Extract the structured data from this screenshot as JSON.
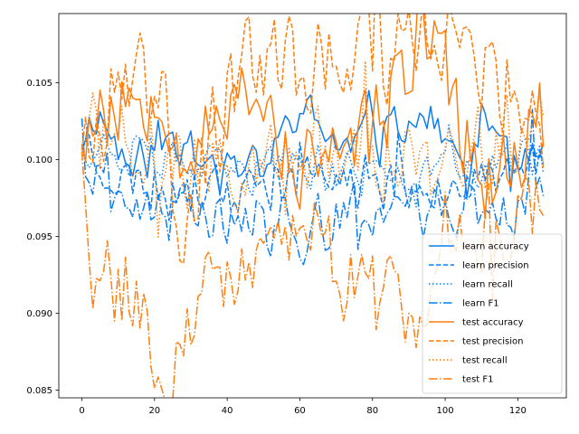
{
  "chart_data": {
    "type": "line",
    "title": "",
    "xlabel": "",
    "ylabel": "",
    "xlim": [
      -6.35,
      133.35
    ],
    "ylim": [
      0.0845,
      0.1095
    ],
    "x_ticks": [
      0,
      20,
      40,
      60,
      80,
      100,
      120
    ],
    "y_ticks": [
      0.085,
      0.09,
      0.095,
      0.1,
      0.105
    ],
    "y_tick_labels": [
      "0.085",
      "0.090",
      "0.095",
      "0.100",
      "0.105"
    ],
    "legend_position": "lower-right",
    "grid": false,
    "colors": {
      "learn": "#0a7ef2",
      "test": "#ff7f0e"
    },
    "series": [
      {
        "name": "learn accuracy",
        "color": "#0a7ef2",
        "dash": "solid",
        "amplitude": 0.0019,
        "seed": 11,
        "anchors": [
          [
            0,
            0.1015
          ],
          [
            4,
            0.1032
          ],
          [
            14,
            0.0992
          ],
          [
            24,
            0.1018
          ],
          [
            32,
            0.1
          ],
          [
            52,
            0.0998
          ],
          [
            59,
            0.1035
          ],
          [
            73,
            0.1005
          ],
          [
            77,
            0.1018
          ],
          [
            91,
            0.103
          ],
          [
            99,
            0.102
          ],
          [
            105,
            0.099
          ],
          [
            113,
            0.1025
          ],
          [
            120,
            0.1
          ],
          [
            127,
            0.1
          ]
        ]
      },
      {
        "name": "learn precision",
        "color": "#0a7ef2",
        "dash": "dashed",
        "amplitude": 0.0021,
        "seed": 23,
        "anchors": [
          [
            0,
            0.1015
          ],
          [
            10,
            0.0985
          ],
          [
            20,
            0.099
          ],
          [
            40,
            0.0975
          ],
          [
            60,
            0.099
          ],
          [
            80,
            0.0985
          ],
          [
            100,
            0.0985
          ],
          [
            120,
            0.099
          ],
          [
            127,
            0.1005
          ]
        ]
      },
      {
        "name": "learn recall",
        "color": "#0a7ef2",
        "dash": "dotted",
        "amplitude": 0.0019,
        "seed": 37,
        "anchors": [
          [
            0,
            0.1012
          ],
          [
            20,
            0.1
          ],
          [
            40,
            0.099
          ],
          [
            60,
            0.0995
          ],
          [
            80,
            0.099
          ],
          [
            100,
            0.0995
          ],
          [
            127,
            0.1
          ]
        ]
      },
      {
        "name": "learn F1",
        "color": "#0a7ef2",
        "dash": "dashdot",
        "amplitude": 0.0025,
        "seed": 41,
        "anchors": [
          [
            0,
            0.101
          ],
          [
            8,
            0.096
          ],
          [
            20,
            0.0965
          ],
          [
            40,
            0.096
          ],
          [
            60,
            0.0955
          ],
          [
            80,
            0.0965
          ],
          [
            100,
            0.097
          ],
          [
            120,
            0.0965
          ],
          [
            127,
            0.099
          ]
        ]
      },
      {
        "name": "test accuracy",
        "color": "#ff7f0e",
        "dash": "solid",
        "amplitude": 0.0035,
        "seed": 53,
        "anchors": [
          [
            0,
            0.1022
          ],
          [
            13,
            0.104
          ],
          [
            22,
            0.105
          ],
          [
            28,
            0.1
          ],
          [
            45,
            0.1055
          ],
          [
            60,
            0.099
          ],
          [
            80,
            0.102
          ],
          [
            92,
            0.1075
          ],
          [
            96,
            0.108
          ],
          [
            110,
            0.098
          ],
          [
            127,
            0.103
          ]
        ]
      },
      {
        "name": "test precision",
        "color": "#ff7f0e",
        "dash": "dashed",
        "amplitude": 0.0042,
        "seed": 67,
        "anchors": [
          [
            0,
            0.102
          ],
          [
            22,
            0.1065
          ],
          [
            27,
            0.096
          ],
          [
            45,
            0.106
          ],
          [
            79,
            0.106
          ],
          [
            91,
            0.108
          ],
          [
            96,
            0.1085
          ],
          [
            127,
            0.1025
          ]
        ]
      },
      {
        "name": "test recall",
        "color": "#ff7f0e",
        "dash": "dotted",
        "amplitude": 0.0035,
        "seed": 71,
        "anchors": [
          [
            0,
            0.102
          ],
          [
            20,
            0.1
          ],
          [
            40,
            0.099
          ],
          [
            60,
            0.1
          ],
          [
            80,
            0.1005
          ],
          [
            100,
            0.0995
          ],
          [
            127,
            0.102
          ]
        ]
      },
      {
        "name": "test F1",
        "color": "#ff7f0e",
        "dash": "dashdot",
        "amplitude": 0.004,
        "seed": 83,
        "anchors": [
          [
            0,
            0.1018
          ],
          [
            2,
            0.092
          ],
          [
            10,
            0.0915
          ],
          [
            27,
            0.087
          ],
          [
            35,
            0.093
          ],
          [
            45,
            0.0915
          ],
          [
            60,
            0.096
          ],
          [
            70,
            0.0925
          ],
          [
            92,
            0.0905
          ],
          [
            100,
            0.095
          ],
          [
            117,
            0.096
          ],
          [
            127,
            0.0985
          ]
        ]
      }
    ]
  }
}
